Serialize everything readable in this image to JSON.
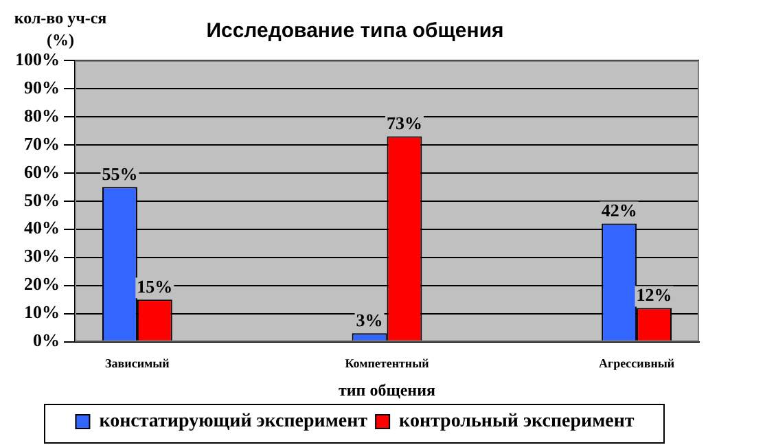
{
  "chart_data": {
    "type": "bar",
    "title": "Исследование типа общения",
    "xlabel": "тип общения",
    "ylabel": "кол-во уч-ся (%)",
    "categories": [
      "Зависимый",
      null,
      "Компетентный",
      null,
      "Агрессивный"
    ],
    "series": [
      {
        "name": "констатирующий эксперимент",
        "color": "#3366ff",
        "values": [
          55,
          null,
          3,
          null,
          42
        ],
        "value_labels": [
          "55%",
          null,
          "3%",
          null,
          "42%"
        ]
      },
      {
        "name": "контрольный эксперимент",
        "color": "#ff0000",
        "values": [
          15,
          null,
          73,
          null,
          12
        ],
        "value_labels": [
          "15%",
          null,
          "73%",
          null,
          "12%"
        ]
      }
    ],
    "ylim": [
      0,
      100
    ],
    "yticks": [
      {
        "value": 0,
        "label": "0%"
      },
      {
        "value": 10,
        "label": "10%"
      },
      {
        "value": 20,
        "label": "20%"
      },
      {
        "value": 30,
        "label": "30%"
      },
      {
        "value": 40,
        "label": "40%"
      },
      {
        "value": 50,
        "label": "50%"
      },
      {
        "value": 60,
        "label": "60%"
      },
      {
        "value": 70,
        "label": "70%"
      },
      {
        "value": 80,
        "label": "80%"
      },
      {
        "value": 90,
        "label": "90%"
      },
      {
        "value": 100,
        "label": "100%"
      }
    ],
    "grid": "y",
    "legend": "bottom"
  }
}
